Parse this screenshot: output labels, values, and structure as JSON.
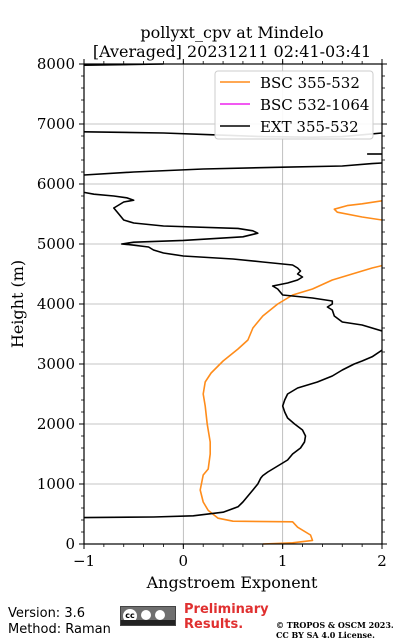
{
  "chart_data": {
    "type": "line",
    "title_line1": "pollyxt_cpv at Mindelo",
    "title_line2": "[Averaged] 20231211 02:41-03:41",
    "xlabel": "Angstroem Exponent",
    "ylabel": "Height (m)",
    "xlim": [
      -1,
      2
    ],
    "ylim": [
      0,
      8000
    ],
    "x_ticks": [
      "−1",
      "0",
      "1",
      "2"
    ],
    "x_tick_values": [
      -1,
      0,
      1,
      2
    ],
    "y_ticks": [
      "0",
      "1000",
      "2000",
      "3000",
      "4000",
      "5000",
      "6000",
      "7000",
      "8000"
    ],
    "y_tick_values": [
      0,
      1000,
      2000,
      3000,
      4000,
      5000,
      6000,
      7000,
      8000
    ],
    "grid": true,
    "legend_position": "top-right",
    "series": [
      {
        "name": "BSC 355-532",
        "color": "#ff8c1a",
        "segments": [
          [
            [
              0.8,
              0
            ],
            [
              1.1,
              20
            ],
            [
              1.3,
              60
            ],
            [
              1.28,
              150
            ],
            [
              1.15,
              280
            ],
            [
              1.1,
              370
            ],
            [
              0.5,
              380
            ],
            [
              0.35,
              430
            ],
            [
              0.25,
              560
            ],
            [
              0.2,
              700
            ],
            [
              0.17,
              900
            ],
            [
              0.2,
              1150
            ],
            [
              0.25,
              1250
            ],
            [
              0.27,
              1500
            ],
            [
              0.27,
              1700
            ],
            [
              0.24,
              2000
            ],
            [
              0.22,
              2300
            ],
            [
              0.2,
              2500
            ],
            [
              0.22,
              2700
            ],
            [
              0.28,
              2850
            ],
            [
              0.4,
              3050
            ],
            [
              0.55,
              3250
            ],
            [
              0.65,
              3400
            ],
            [
              0.7,
              3600
            ],
            [
              0.8,
              3800
            ],
            [
              0.95,
              4000
            ],
            [
              1.1,
              4150
            ],
            [
              1.3,
              4250
            ],
            [
              1.5,
              4400
            ],
            [
              1.7,
              4500
            ],
            [
              1.9,
              4600
            ],
            [
              2.0,
              4640
            ]
          ],
          [
            [
              2.0,
              5400
            ],
            [
              1.8,
              5450
            ],
            [
              1.55,
              5530
            ],
            [
              1.52,
              5580
            ],
            [
              1.65,
              5640
            ],
            [
              1.8,
              5670
            ],
            [
              2.0,
              5720
            ]
          ]
        ]
      },
      {
        "name": "BSC 532-1064",
        "color": "#ee22ee",
        "segments": []
      },
      {
        "name": "EXT 355-532",
        "color": "#000000",
        "segments": [
          [
            [
              -1.0,
              440
            ],
            [
              -0.3,
              450
            ],
            [
              0.1,
              470
            ],
            [
              0.4,
              530
            ],
            [
              0.55,
              620
            ],
            [
              0.6,
              700
            ],
            [
              0.65,
              800
            ],
            [
              0.7,
              900
            ],
            [
              0.75,
              1000
            ],
            [
              0.78,
              1100
            ],
            [
              0.8,
              1140
            ],
            [
              0.85,
              1200
            ],
            [
              0.95,
              1300
            ],
            [
              1.05,
              1400
            ],
            [
              1.1,
              1500
            ],
            [
              1.18,
              1600
            ],
            [
              1.22,
              1700
            ],
            [
              1.23,
              1800
            ],
            [
              1.2,
              1900
            ],
            [
              1.12,
              2000
            ],
            [
              1.05,
              2100
            ],
            [
              1.02,
              2200
            ],
            [
              1.0,
              2300
            ],
            [
              1.02,
              2400
            ],
            [
              1.05,
              2500
            ],
            [
              1.15,
              2600
            ],
            [
              1.35,
              2700
            ],
            [
              1.5,
              2800
            ],
            [
              1.6,
              2900
            ],
            [
              1.72,
              3000
            ],
            [
              1.8,
              3050
            ],
            [
              1.9,
              3120
            ],
            [
              2.0,
              3230
            ]
          ],
          [
            [
              2.0,
              3550
            ],
            [
              1.8,
              3650
            ],
            [
              1.6,
              3700
            ],
            [
              1.52,
              3800
            ],
            [
              1.5,
              3900
            ],
            [
              1.45,
              3950
            ],
            [
              1.5,
              4000
            ],
            [
              1.5,
              4050
            ],
            [
              1.3,
              4100
            ],
            [
              1.0,
              4150
            ],
            [
              0.95,
              4250
            ],
            [
              0.9,
              4300
            ],
            [
              1.05,
              4350
            ],
            [
              1.15,
              4400
            ],
            [
              1.2,
              4450
            ],
            [
              1.15,
              4500
            ],
            [
              1.18,
              4550
            ],
            [
              1.15,
              4600
            ],
            [
              1.1,
              4650
            ],
            [
              0.8,
              4700
            ],
            [
              0.5,
              4750
            ],
            [
              0.0,
              4800
            ],
            [
              -0.2,
              4850
            ],
            [
              -0.3,
              4900
            ],
            [
              -0.35,
              4950
            ],
            [
              -0.55,
              4990
            ],
            [
              -0.62,
              5000
            ],
            [
              -0.5,
              5030
            ],
            [
              0.0,
              5060
            ],
            [
              0.6,
              5120
            ],
            [
              0.75,
              5180
            ],
            [
              0.7,
              5220
            ],
            [
              0.55,
              5260
            ],
            [
              -0.2,
              5300
            ],
            [
              -0.5,
              5350
            ],
            [
              -0.6,
              5400
            ],
            [
              -0.65,
              5500
            ],
            [
              -0.7,
              5600
            ],
            [
              -0.65,
              5650
            ],
            [
              -0.6,
              5700
            ],
            [
              -0.5,
              5730
            ],
            [
              -0.57,
              5770
            ],
            [
              -0.7,
              5800
            ],
            [
              -0.9,
              5830
            ],
            [
              -1.0,
              5860
            ]
          ],
          [
            [
              -1.0,
              6150
            ],
            [
              -0.5,
              6200
            ],
            [
              0.2,
              6250
            ],
            [
              1.0,
              6280
            ],
            [
              1.6,
              6300
            ],
            [
              1.9,
              6340
            ],
            [
              2.0,
              6350
            ]
          ],
          [
            [
              -1.0,
              6870
            ],
            [
              -0.2,
              6850
            ],
            [
              0.3,
              6820
            ],
            [
              0.8,
              6790
            ],
            [
              1.3,
              6780
            ],
            [
              1.6,
              6790
            ],
            [
              1.8,
              6820
            ],
            [
              2.0,
              6850
            ]
          ],
          [
            [
              -1.0,
              7980
            ],
            [
              -0.2,
              8000
            ]
          ],
          [
            [
              1.85,
              6500
            ],
            [
              2.0,
              6500
            ]
          ]
        ]
      }
    ]
  },
  "footer": {
    "version": "Version: 3.6",
    "method": "Method: Raman",
    "preliminary_line1": "Preliminary",
    "preliminary_line2": "Results.",
    "copyright_line1": "© TROPOS & OSCM 2023.",
    "copyright_line2": "CC BY SA 4.0 License."
  }
}
